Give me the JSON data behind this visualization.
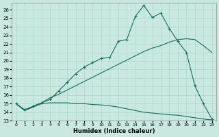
{
  "xlabel": "Humidex (Indice chaleur)",
  "bg_color": "#c8e8e0",
  "grid_color": "#a8d4cc",
  "line_color": "#1a6b5a",
  "xlim": [
    -0.5,
    23.5
  ],
  "ylim": [
    13,
    26.8
  ],
  "yticks": [
    13,
    14,
    15,
    16,
    17,
    18,
    19,
    20,
    21,
    22,
    23,
    24,
    25,
    26
  ],
  "xticks": [
    0,
    1,
    2,
    3,
    4,
    5,
    6,
    7,
    8,
    9,
    10,
    11,
    12,
    13,
    14,
    15,
    16,
    17,
    18,
    19,
    20,
    21,
    22,
    23
  ],
  "line1_x": [
    0,
    1,
    2,
    3,
    4,
    5,
    6,
    7,
    8,
    9,
    10,
    11,
    12,
    13,
    14,
    15,
    16,
    17,
    18,
    19,
    20,
    21,
    22,
    23
  ],
  "line1_y": [
    15.0,
    14.2,
    14.6,
    15.0,
    15.1,
    15.1,
    15.1,
    15.0,
    15.0,
    14.9,
    14.85,
    14.75,
    14.6,
    14.4,
    14.2,
    14.0,
    13.9,
    13.8,
    13.7,
    13.65,
    13.5,
    13.35,
    13.2,
    13.1
  ],
  "line2_x": [
    0,
    1,
    2,
    3,
    4,
    5,
    6,
    7,
    8,
    9,
    10,
    11,
    12,
    13,
    14,
    15,
    16,
    17,
    18,
    19,
    20,
    21,
    22,
    23
  ],
  "line2_y": [
    15.0,
    14.2,
    14.7,
    15.1,
    15.7,
    16.1,
    16.6,
    17.1,
    17.6,
    18.1,
    18.6,
    19.1,
    19.6,
    20.1,
    20.6,
    21.1,
    21.5,
    21.8,
    22.2,
    22.5,
    22.6,
    22.5,
    21.8,
    21.0
  ],
  "line3_x": [
    0,
    1,
    2,
    3,
    4,
    5,
    6,
    7,
    8,
    9,
    10,
    11,
    12,
    13,
    14,
    15,
    16,
    17,
    18,
    19,
    20,
    21,
    22,
    23
  ],
  "line3_y": [
    15.0,
    14.3,
    14.7,
    15.1,
    15.5,
    16.5,
    17.5,
    18.5,
    19.3,
    19.8,
    20.3,
    20.4,
    22.3,
    22.5,
    25.2,
    26.5,
    25.1,
    25.6,
    23.8,
    22.3,
    21.0,
    17.1,
    15.0,
    13.2
  ],
  "marker_x": [
    0,
    1,
    2,
    3,
    4,
    5,
    6,
    7,
    8,
    9,
    10,
    11,
    12,
    13,
    14,
    15,
    16,
    17,
    18,
    19,
    20,
    21,
    22,
    23
  ],
  "marker_y": [
    15.0,
    14.3,
    14.7,
    15.1,
    15.5,
    16.5,
    17.5,
    18.5,
    19.3,
    19.8,
    20.3,
    20.4,
    22.3,
    22.5,
    25.2,
    26.5,
    25.1,
    25.6,
    23.8,
    22.3,
    21.0,
    17.1,
    15.0,
    13.2
  ]
}
